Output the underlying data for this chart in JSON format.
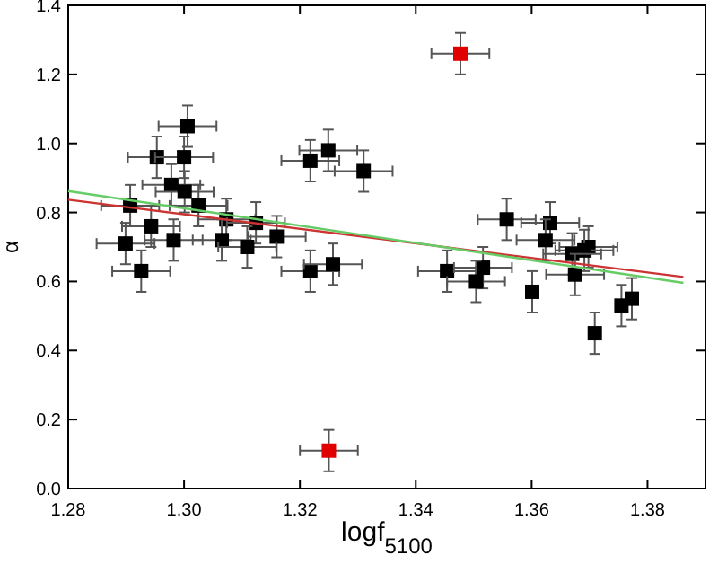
{
  "chart_data": {
    "type": "scatter",
    "xlabel": "logf$_{5100}$",
    "ylabel": "α",
    "xlim": [
      1.28,
      1.39
    ],
    "xticks": [
      1.28,
      {
        "value": 1.3,
        "label": "1.30"
      },
      1.32,
      1.34,
      1.36,
      1.38
    ],
    "ylim": [
      0,
      1.4
    ],
    "yticks": [
      {
        "value": 0,
        "label": "0.0"
      },
      0.2,
      0.4,
      0.6,
      0.8,
      {
        "value": 1,
        "label": "1.0"
      },
      1.2,
      1.4
    ],
    "grid": false,
    "series": [
      {
        "color": "#000000",
        "marker": "square",
        "x": [
          1.3006,
          1.2953,
          1.3,
          1.2978,
          1.3001,
          1.2907,
          1.3025,
          1.3073,
          1.3124,
          1.316,
          1.2943,
          1.2982,
          1.2899,
          1.3065,
          1.3109,
          1.2926,
          1.3218,
          1.3249,
          1.331,
          1.3218,
          1.3257,
          1.3557,
          1.3632,
          1.3624,
          1.3698,
          1.3691,
          1.367,
          1.3675,
          1.3454,
          1.3516,
          1.3504,
          1.3601,
          1.3709,
          1.3755,
          1.3773
        ],
        "values": [
          1.05,
          0.96,
          0.96,
          0.88,
          0.86,
          0.82,
          0.82,
          0.78,
          0.77,
          0.73,
          0.76,
          0.72,
          0.71,
          0.72,
          0.7,
          0.63,
          0.95,
          0.98,
          0.92,
          0.63,
          0.65,
          0.78,
          0.77,
          0.72,
          0.7,
          0.69,
          0.68,
          0.62,
          0.63,
          0.64,
          0.6,
          0.57,
          0.45,
          0.53,
          0.55
        ],
        "errors": [
          0.06,
          0.06,
          0.06,
          0.06,
          0.06,
          0.06,
          0.06,
          0.06,
          0.06,
          0.06,
          0.06,
          0.06,
          0.06,
          0.06,
          0.06,
          0.06,
          0.06,
          0.06,
          0.06,
          0.06,
          0.06,
          0.06,
          0.06,
          0.06,
          0.06,
          0.06,
          0.06,
          0.06,
          0.06,
          0.06,
          0.06,
          0.06,
          0.06,
          0.06,
          0.06
        ],
        "xerrors": [
          0.005,
          0.005,
          0.005,
          0.005,
          0.005,
          0.005,
          0.005,
          0.005,
          0.005,
          0.005,
          0.005,
          0.005,
          0.005,
          0.005,
          0.005,
          0.005,
          0.005,
          0.005,
          0.005,
          0.005,
          0.005,
          0.005,
          0.005,
          0.005,
          0.005,
          0.005,
          0.005,
          0.005,
          0.005,
          0.005,
          0.005,
          null,
          null,
          null,
          null
        ]
      },
      {
        "color": "#e00000",
        "marker": "square",
        "x": [
          1.3477,
          1.325
        ],
        "values": [
          1.26,
          0.11
        ],
        "errors": [
          0.06,
          0.06
        ],
        "xerrors": [
          0.005,
          0.005
        ]
      },
      {
        "type": "line",
        "color": "#cc3333",
        "x": [
          1.28,
          1.3862
        ],
        "values": [
          0.837,
          0.613
        ]
      },
      {
        "type": "line",
        "color": "#66cc66",
        "x": [
          1.28,
          1.3862
        ],
        "values": [
          0.862,
          0.596
        ]
      }
    ]
  }
}
